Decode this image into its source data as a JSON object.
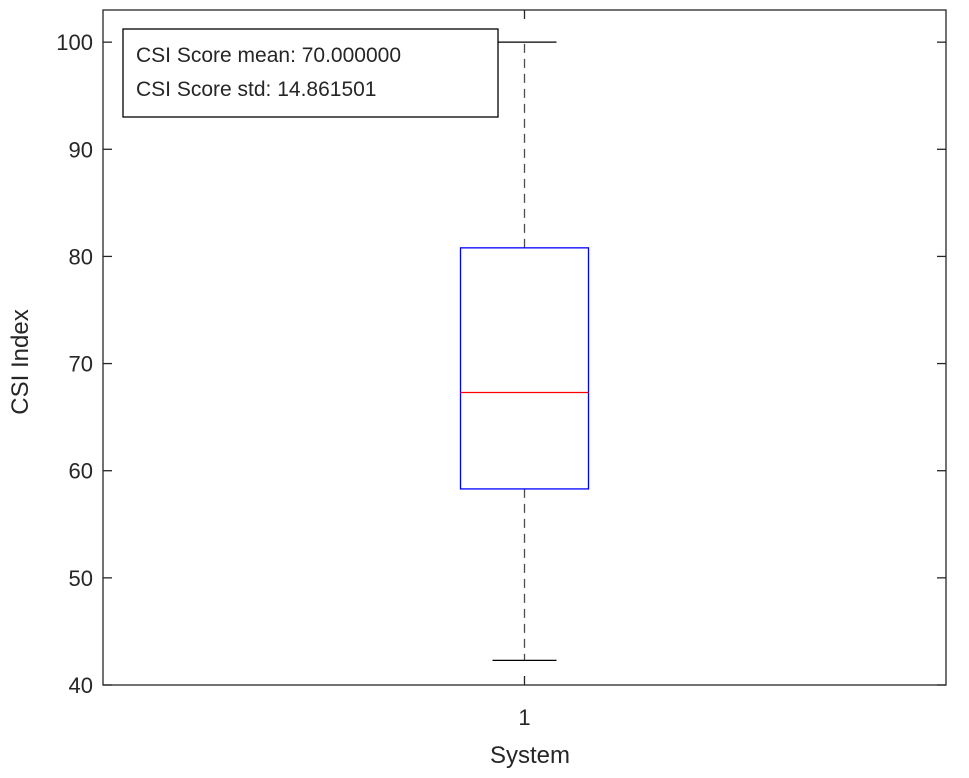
{
  "chart_data": {
    "type": "boxplot",
    "title": "",
    "xlabel": "System",
    "ylabel": "CSI Index",
    "categories": [
      "1"
    ],
    "boxes": [
      {
        "category": "1",
        "whisker_low": 42.3,
        "q1": 58.3,
        "median": 67.3,
        "q3": 80.8,
        "whisker_high": 100
      }
    ],
    "ylim": [
      40,
      103
    ],
    "yticks": [
      40,
      50,
      60,
      70,
      80,
      90,
      100
    ],
    "grid": false,
    "annotation": {
      "lines": [
        "CSI Score mean: 70.000000",
        "CSI Score std: 14.861501"
      ],
      "placement": "top-left"
    },
    "colors": {
      "box": "#0000ff",
      "median": "#ff0000",
      "whisker": "#000000",
      "axes": "#262626"
    }
  }
}
